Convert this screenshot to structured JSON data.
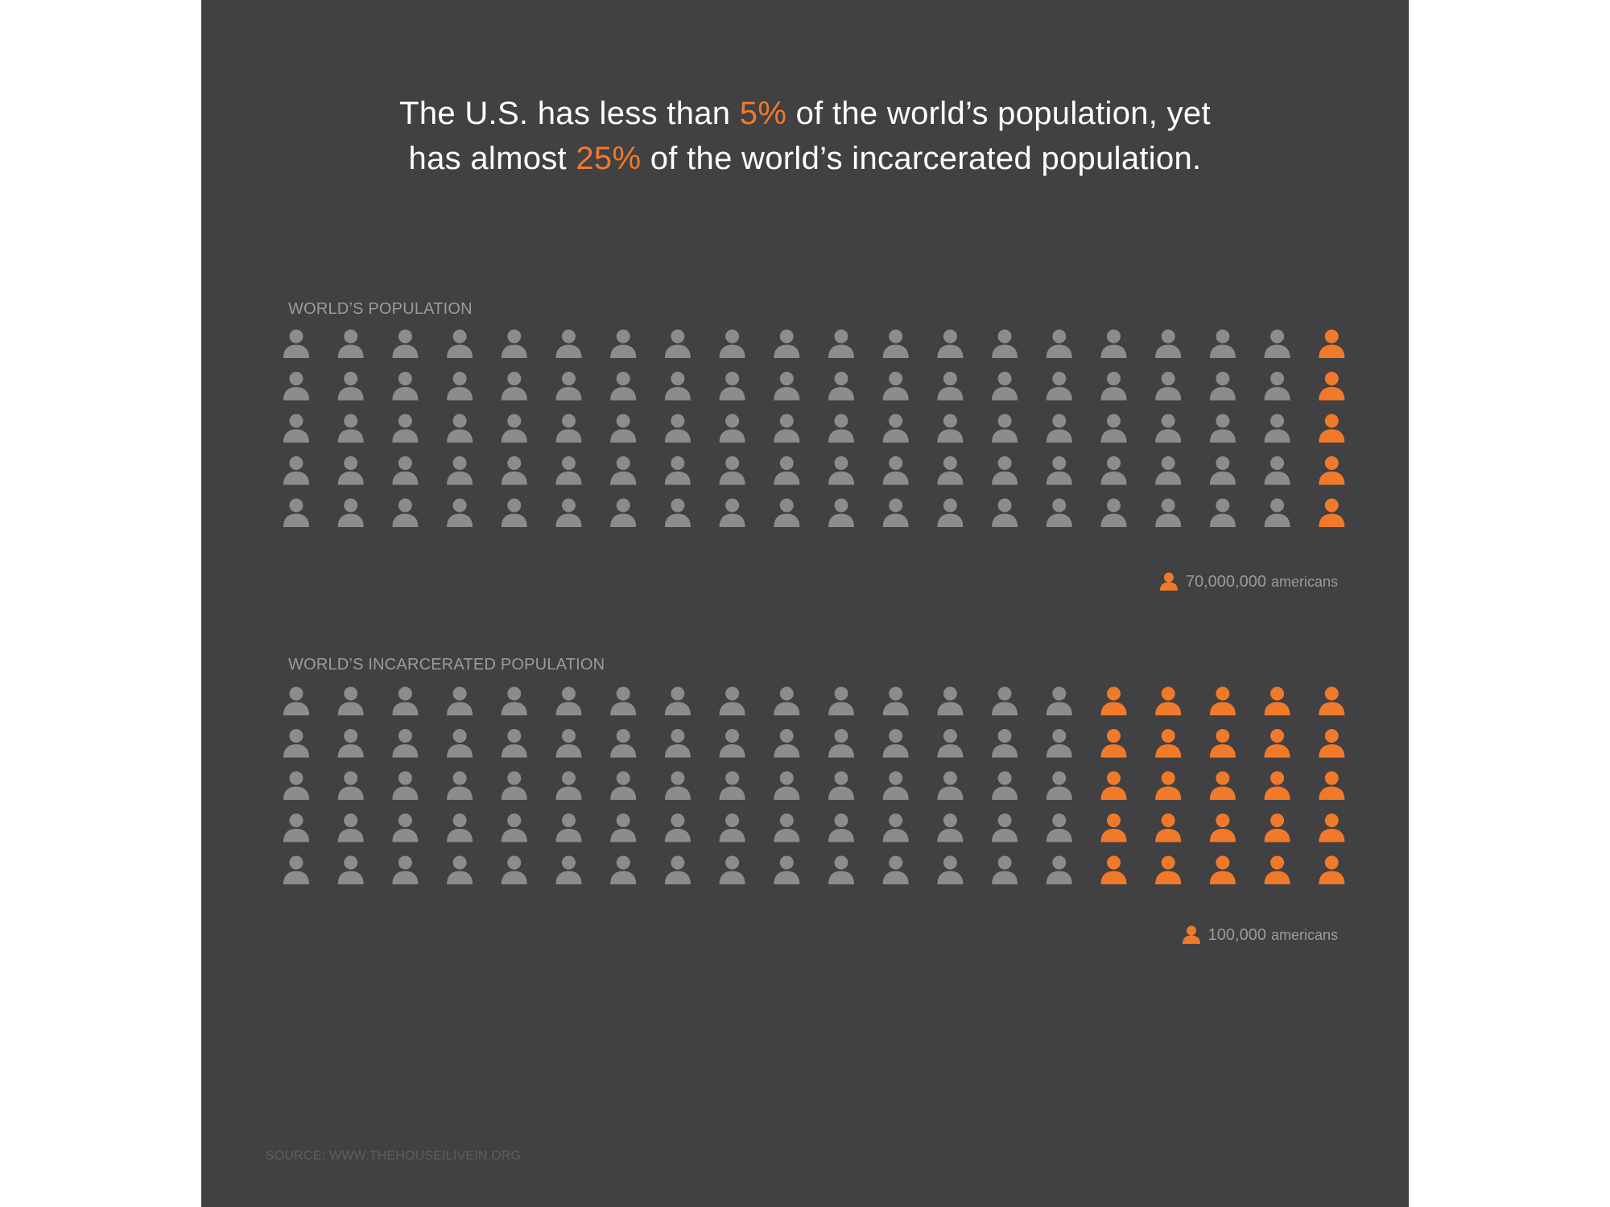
{
  "headline": {
    "line1_before": "The U.S. has less than ",
    "line1_highlight": "5%",
    "line1_after": " of the world’s population, yet",
    "line2_before": "has almost ",
    "line2_highlight": "25%",
    "line2_after": " of the world’s incarcerated population."
  },
  "colors": {
    "background": "#414042",
    "figure_gray": "#8c8c8c",
    "highlight": "#f07a2a",
    "label_gray": "#9b9b9b"
  },
  "icon": "person-icon",
  "chart_data": [
    {
      "type": "pictogram",
      "title": "WORLD’S POPULATION",
      "rows": 5,
      "columns": 20,
      "total_icons": 100,
      "highlighted_icons": 5,
      "highlighted_share_percent": 5,
      "legend": {
        "amount": "70,000,000",
        "unit": "americans"
      }
    },
    {
      "type": "pictogram",
      "title": "WORLD’S INCARCERATED POPULATION",
      "rows": 5,
      "columns": 20,
      "total_icons": 100,
      "highlighted_icons": 25,
      "highlighted_share_percent": 25,
      "legend": {
        "amount": "100,000",
        "unit": "americans"
      }
    }
  ],
  "source": "SOURCE: WWW.THEHOUSEILIVEIN.ORG"
}
